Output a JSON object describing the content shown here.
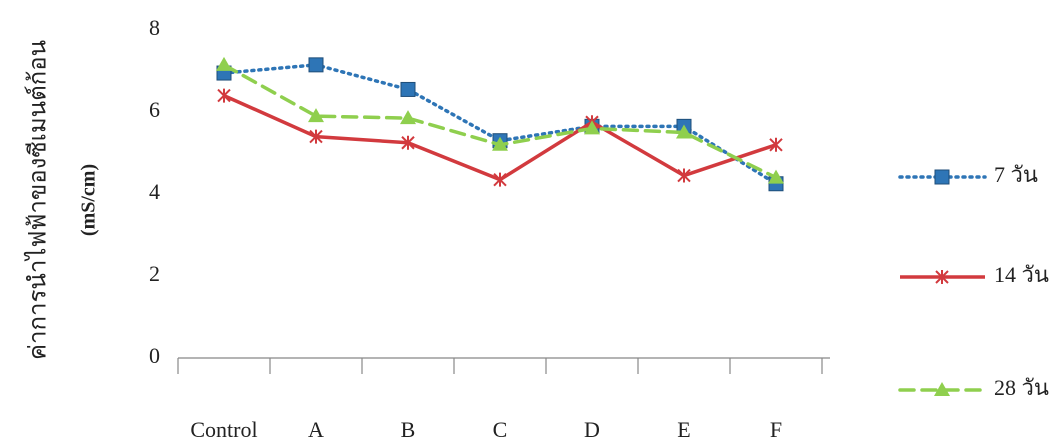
{
  "chart_data": {
    "type": "line",
    "y_label": "ค่าการนำไฟฟ้าของซีเมนต์ก้อน",
    "y_label_unit": "(mS/cm)",
    "categories": [
      "Control",
      "A",
      "B",
      "C",
      "D",
      "E",
      "F"
    ],
    "ylim": [
      0,
      8
    ],
    "yticks": [
      0,
      2,
      4,
      6,
      8
    ],
    "grid": false,
    "legend": "right",
    "series": [
      {
        "name": "7 วัน",
        "color": "#2e75b6",
        "dash": "2 5",
        "marker": "square",
        "values": [
          6.95,
          7.15,
          6.55,
          5.3,
          5.65,
          5.65,
          4.25
        ]
      },
      {
        "name": "14 วัน",
        "color": "#d23a3e",
        "dash": "none",
        "marker": "star",
        "values": [
          6.4,
          5.4,
          5.25,
          4.35,
          5.75,
          4.45,
          5.2
        ]
      },
      {
        "name": "28 วัน",
        "color": "#8fcf4e",
        "dash": "14 8",
        "marker": "triangle",
        "values": [
          7.15,
          5.9,
          5.85,
          5.2,
          5.6,
          5.5,
          4.4
        ]
      }
    ]
  }
}
